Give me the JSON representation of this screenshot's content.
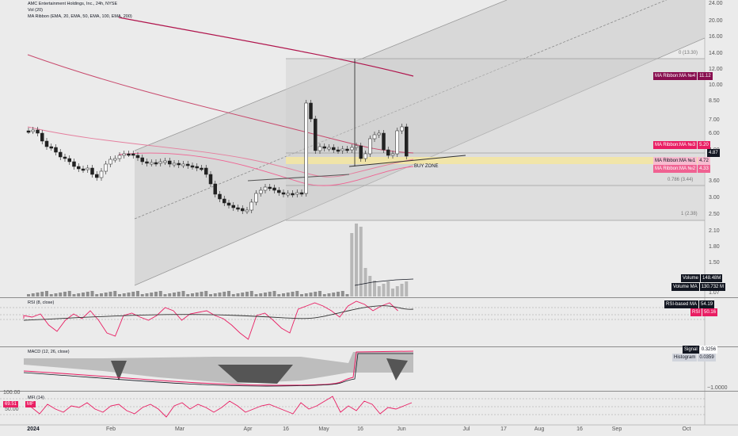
{
  "chart_header": {
    "title": "AMC Entertainment Holdings, Inc., 24h, NYSE",
    "vol_label": "Vol (20)",
    "ma_label": "MA Ribbon (EMA, 20, EMA, 50, EMA, 100, EMA, 200)"
  },
  "price_axis": {
    "ticks": [
      "24.00",
      "20.00",
      "16.00",
      "14.00",
      "12.00",
      "10.00",
      "8.50",
      "7.00",
      "6.00",
      "4.00",
      "3.60",
      "3.00",
      "2.50",
      "2.10",
      "1.80",
      "1.50",
      "1.07"
    ]
  },
  "time_axis": {
    "year": "2024",
    "months": [
      "Feb",
      "Mar",
      "Apr",
      "16",
      "May",
      "16",
      "Jun",
      "Jul",
      "17",
      "Aug",
      "16",
      "Sep",
      "Oct"
    ]
  },
  "fib_levels": [
    {
      "label": "0 (13.30)"
    },
    {
      "label": "0.786 (3.44)"
    },
    {
      "label": "1 (2.38)"
    }
  ],
  "annotations": {
    "buy_zone": "BUY ZONE"
  },
  "price_tags": [
    {
      "label": "MA Ribbon:MA №4",
      "value": "11.12",
      "color": "#880e4f"
    },
    {
      "label": "MA Ribbon:MA №3",
      "value": "5.20",
      "color": "#e91e63"
    },
    {
      "label": "",
      "value": "4.87",
      "color": "#131722"
    },
    {
      "label": "MA Ribbon:MA №1",
      "value": "4.72",
      "color": "#f48fb1"
    },
    {
      "label": "MA Ribbon:MA №2",
      "value": "4.33",
      "color": "#f06292"
    }
  ],
  "volume_tags": [
    {
      "label": "Volume",
      "value": "148.48M"
    },
    {
      "label": "Volume MA",
      "value": "130.732 M"
    }
  ],
  "rsi": {
    "title": "RSI (8, close)",
    "tags": [
      {
        "label": "RSI-based MA",
        "value": "54.19"
      },
      {
        "label": "RSI",
        "value": "50.16"
      }
    ]
  },
  "macd": {
    "title": "MACD (12, 26, close)",
    "axis_label": "−1.0000",
    "tags": [
      {
        "label": "Signal",
        "value": "0.3256"
      },
      {
        "label": "Histogram",
        "value": "0.0359"
      }
    ]
  },
  "mfi": {
    "title": "MFI (14)",
    "value_tag": "69.51",
    "value_label": "MF",
    "ticks": [
      "100.00",
      "50.00"
    ]
  },
  "colors": {
    "background": "#ebebeb",
    "channel_fill": "#d6d6d6",
    "ma200": "#b0144c",
    "ma100": "#c84a6d",
    "ma50": "#e57f9e",
    "rsi_line": "#e91e63",
    "buy_zone": "#f3e5a3"
  },
  "chart_data": [
    {
      "type": "candlestick",
      "title": "AMC Entertainment Holdings, Inc., 24h, NYSE",
      "ylabel": "",
      "series": [
        {
          "name": "MA Ribbon:MA №4",
          "last": 11.12
        },
        {
          "name": "MA Ribbon:MA №3",
          "last": 5.2
        },
        {
          "name": "MA Ribbon:MA №1",
          "last": 4.72
        },
        {
          "name": "MA Ribbon:MA №2",
          "last": 4.33
        }
      ],
      "last_price": 4.87
    },
    {
      "type": "bar",
      "title": "Vol (20)",
      "series": [
        {
          "name": "Volume",
          "last": "148.48M"
        },
        {
          "name": "Volume MA",
          "last": "130.732 M"
        }
      ]
    },
    {
      "type": "line",
      "title": "RSI (8, close)",
      "series": [
        {
          "name": "RSI",
          "last": 50.16
        },
        {
          "name": "RSI-based MA",
          "last": 54.19
        }
      ]
    },
    {
      "type": "area",
      "title": "MACD (12, 26, close)",
      "series": [
        {
          "name": "Signal",
          "last": 0.3256
        },
        {
          "name": "Histogram",
          "last": 0.0359
        }
      ]
    },
    {
      "type": "line",
      "title": "MFI (14)",
      "series": [
        {
          "name": "MF",
          "last": 69.51
        }
      ],
      "ylim": [
        0,
        100
      ]
    }
  ]
}
